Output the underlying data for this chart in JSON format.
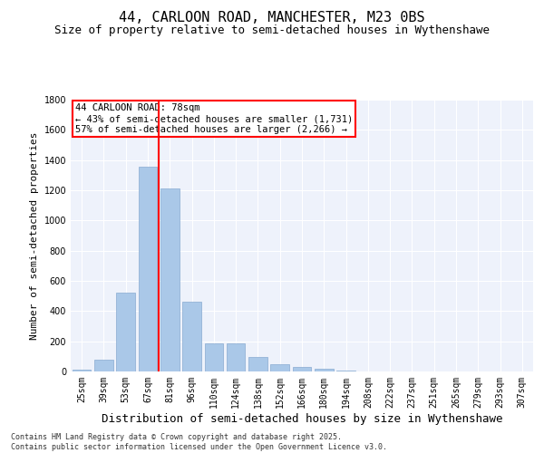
{
  "title1": "44, CARLOON ROAD, MANCHESTER, M23 0BS",
  "title2": "Size of property relative to semi-detached houses in Wythenshawe",
  "xlabel": "Distribution of semi-detached houses by size in Wythenshawe",
  "ylabel": "Number of semi-detached properties",
  "categories": [
    "25sqm",
    "39sqm",
    "53sqm",
    "67sqm",
    "81sqm",
    "96sqm",
    "110sqm",
    "124sqm",
    "138sqm",
    "152sqm",
    "166sqm",
    "180sqm",
    "194sqm",
    "208sqm",
    "222sqm",
    "237sqm",
    "251sqm",
    "265sqm",
    "279sqm",
    "293sqm",
    "307sqm"
  ],
  "values": [
    15,
    80,
    525,
    1355,
    1215,
    465,
    185,
    185,
    95,
    50,
    30,
    20,
    5,
    0,
    0,
    0,
    0,
    0,
    0,
    0,
    0
  ],
  "bar_color": "#aac8e8",
  "bar_edge_color": "#88aad0",
  "vline_color": "red",
  "vline_x": 3.5,
  "annotation_text": "44 CARLOON ROAD: 78sqm\n← 43% of semi-detached houses are smaller (1,731)\n57% of semi-detached houses are larger (2,266) →",
  "annotation_box_color": "white",
  "annotation_box_edge": "red",
  "ylim": [
    0,
    1800
  ],
  "yticks": [
    0,
    200,
    400,
    600,
    800,
    1000,
    1200,
    1400,
    1600,
    1800
  ],
  "background_color": "#eef2fb",
  "footer": "Contains HM Land Registry data © Crown copyright and database right 2025.\nContains public sector information licensed under the Open Government Licence v3.0.",
  "title1_fontsize": 11,
  "title2_fontsize": 9,
  "xlabel_fontsize": 9,
  "ylabel_fontsize": 8,
  "tick_fontsize": 7,
  "annot_fontsize": 7.5,
  "footer_fontsize": 6
}
